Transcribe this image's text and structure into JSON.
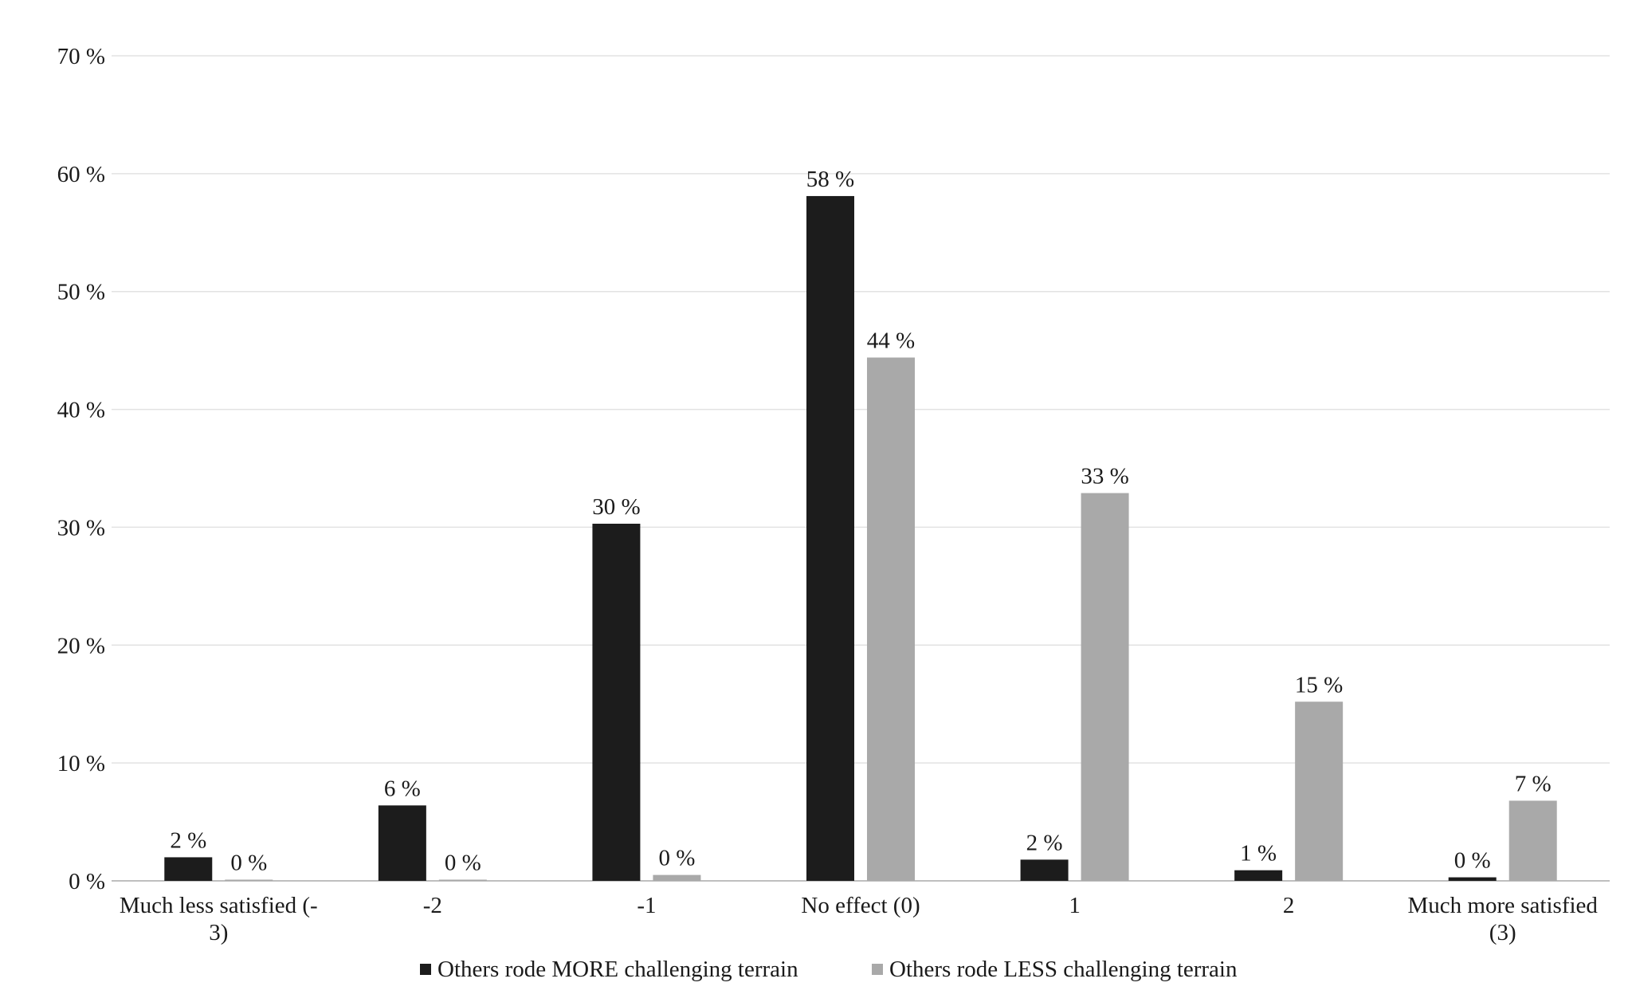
{
  "chart_data": {
    "type": "bar",
    "categories": [
      [
        "Much less satisfied (-",
        "3)"
      ],
      [
        "-2"
      ],
      [
        "-1"
      ],
      [
        "No effect (0)"
      ],
      [
        "1"
      ],
      [
        "2"
      ],
      [
        "Much more satisfied",
        "(3)"
      ]
    ],
    "series": [
      {
        "name": "Others rode MORE challenging terrain",
        "color": "#1c1c1c",
        "values": [
          2.0,
          6.4,
          30.3,
          58.1,
          1.8,
          0.9,
          0.3
        ],
        "labels": [
          "2 %",
          "6 %",
          "30 %",
          "58 %",
          "2 %",
          "1 %",
          "0 %"
        ]
      },
      {
        "name": "Others rode LESS challenging terrain",
        "color": "#a9a9a9",
        "values": [
          0.1,
          0.1,
          0.5,
          44.4,
          32.9,
          15.2,
          6.8
        ],
        "labels": [
          "0 %",
          "0 %",
          "0 %",
          "44 %",
          "33 %",
          "15 %",
          "7 %"
        ]
      }
    ],
    "ylim": [
      0,
      70
    ],
    "yticks": [
      0,
      10,
      20,
      30,
      40,
      50,
      60,
      70
    ],
    "ytick_labels": [
      "0 %",
      "10 %",
      "20 %",
      "30 %",
      "40 %",
      "50 %",
      "60 %",
      "70 %"
    ],
    "title": "",
    "xlabel": "",
    "ylabel": "",
    "grid": true,
    "legend_position": "bottom-center"
  }
}
